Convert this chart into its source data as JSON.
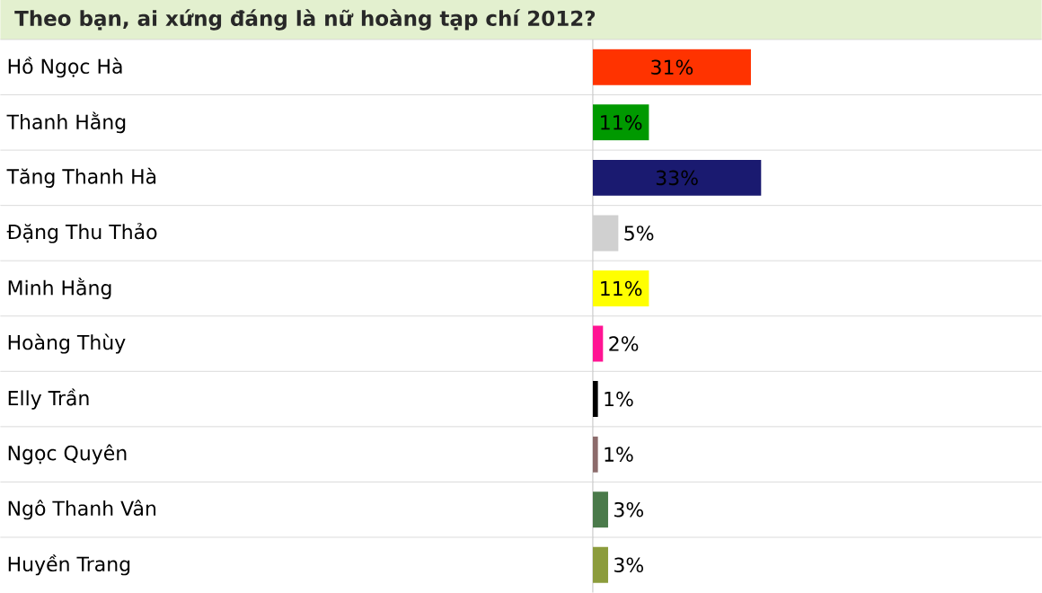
{
  "chart_data": {
    "type": "bar",
    "orientation": "horizontal",
    "title": "Theo bạn, ai xứng đáng là nữ hoàng tạp chí 2012?",
    "categories": [
      "Hồ Ngọc Hà",
      "Thanh Hằng",
      "Tăng Thanh Hà",
      "Đặng Thu Thảo",
      "Minh Hằng",
      "Hoàng Thùy",
      "Elly Trần",
      "Ngọc Quyên",
      "Ngô Thanh Vân",
      "Huyền Trang"
    ],
    "values": [
      31,
      11,
      33,
      5,
      11,
      2,
      1,
      1,
      3,
      3
    ],
    "value_labels": [
      "31%",
      "11%",
      "33%",
      "5%",
      "11%",
      "2%",
      "1%",
      "1%",
      "3%",
      "3%"
    ],
    "colors": [
      "#ff3300",
      "#009900",
      "#1a1a70",
      "#d0d0d0",
      "#ffff00",
      "#ff1493",
      "#000000",
      "#8c6b6b",
      "#4a7a4a",
      "#8c9c3c"
    ],
    "xlim": [
      0,
      88
    ],
    "grid": "y",
    "tick_labels": "y"
  }
}
